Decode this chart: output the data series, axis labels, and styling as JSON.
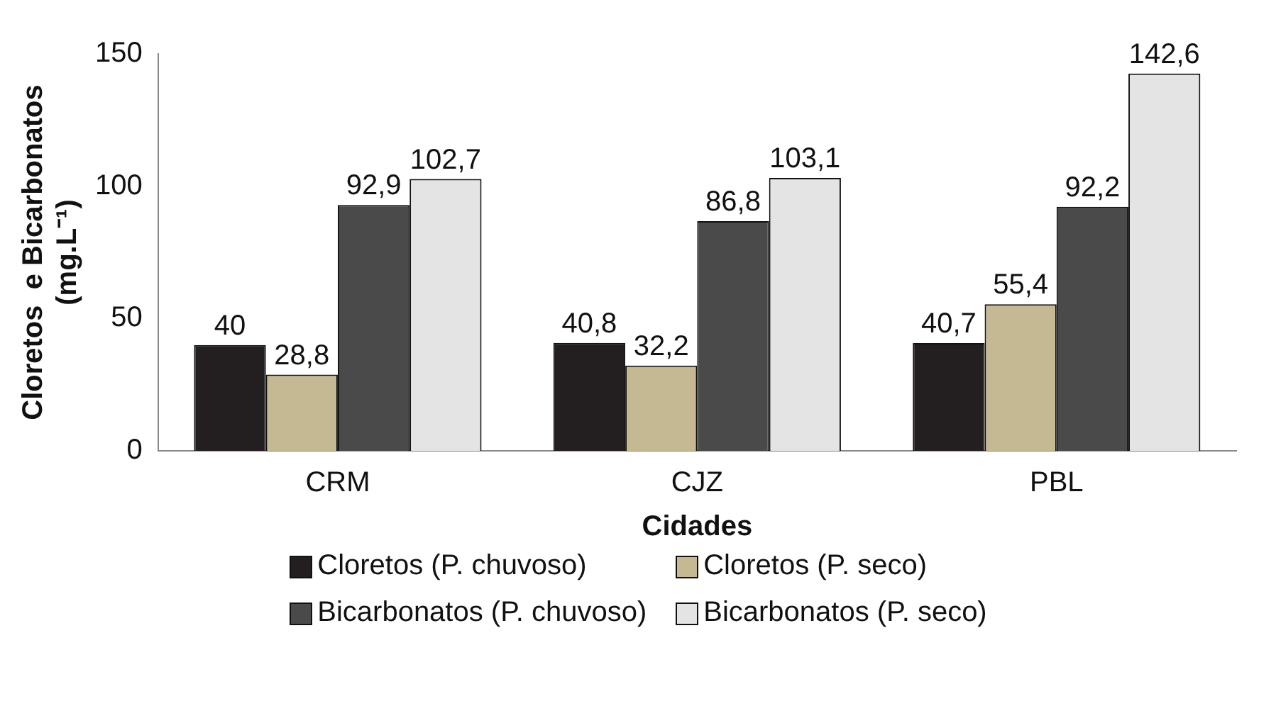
{
  "chart_data": {
    "type": "bar",
    "xlabel": "Cidades",
    "ylabel": "Cloretos  e Bicarbonatos (mg.L⁻¹)",
    "categories": [
      "CRM",
      "CJZ",
      "PBL"
    ],
    "series": [
      {
        "name": "Cloretos (P. chuvoso)",
        "color": "#231f20",
        "values": [
          40,
          40.8,
          40.7
        ],
        "value_labels": [
          "40",
          "40,8",
          "40,7"
        ]
      },
      {
        "name": "Cloretos (P. seco)",
        "color": "#c4b993",
        "values": [
          28.8,
          32.2,
          55.4
        ],
        "value_labels": [
          "28,8",
          "32,2",
          "55,4"
        ]
      },
      {
        "name": "Bicarbonatos (P. chuvoso)",
        "color": "#4a4a4a",
        "values": [
          92.9,
          86.8,
          92.2
        ],
        "value_labels": [
          "92,9",
          "86,8",
          "92,2"
        ]
      },
      {
        "name": "Bicarbonatos (P. seco)",
        "color": "#e4e4e4",
        "values": [
          102.7,
          103.1,
          142.6
        ],
        "value_labels": [
          "102,7",
          "103,1",
          "142,6"
        ]
      }
    ],
    "ylim": [
      0,
      150
    ],
    "yticks": [
      0,
      50,
      100,
      150
    ],
    "grid": false,
    "legend": "bottom"
  }
}
